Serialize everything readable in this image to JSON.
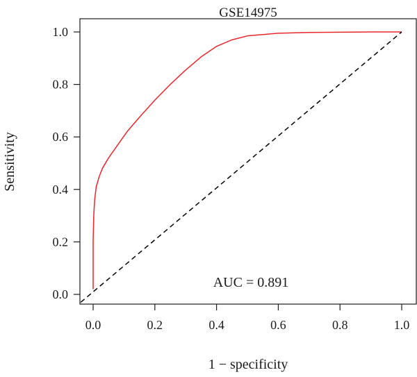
{
  "chart_data": {
    "type": "line",
    "title": "GSE14975",
    "xlabel": "1 − specificity",
    "ylabel": "Sensitivity",
    "xlim": [
      0,
      1
    ],
    "ylim": [
      0,
      1
    ],
    "xticks": [
      "0.0",
      "0.2",
      "0.4",
      "0.6",
      "0.8",
      "1.0"
    ],
    "yticks": [
      "0.0",
      "0.2",
      "0.4",
      "0.6",
      "0.8",
      "1.0"
    ],
    "grid": false,
    "annotation": "AUC = 0.891",
    "series": [
      {
        "color": "#e8262b",
        "x": [
          0.0,
          0.0,
          0.002,
          0.005,
          0.01,
          0.02,
          0.03,
          0.05,
          0.08,
          0.11,
          0.15,
          0.2,
          0.25,
          0.3,
          0.35,
          0.4,
          0.45,
          0.5,
          0.55,
          0.6,
          0.7,
          0.8,
          0.9,
          1.0
        ],
        "y": [
          0.02,
          0.2,
          0.3,
          0.36,
          0.41,
          0.45,
          0.48,
          0.52,
          0.57,
          0.62,
          0.675,
          0.74,
          0.8,
          0.855,
          0.905,
          0.945,
          0.97,
          0.985,
          0.99,
          0.995,
          0.998,
          0.999,
          1.0,
          1.0
        ]
      },
      {
        "color": "#000000",
        "dash": "dashed",
        "x": [
          -0.04,
          1.0
        ],
        "y": [
          -0.03,
          1.0
        ]
      }
    ]
  }
}
